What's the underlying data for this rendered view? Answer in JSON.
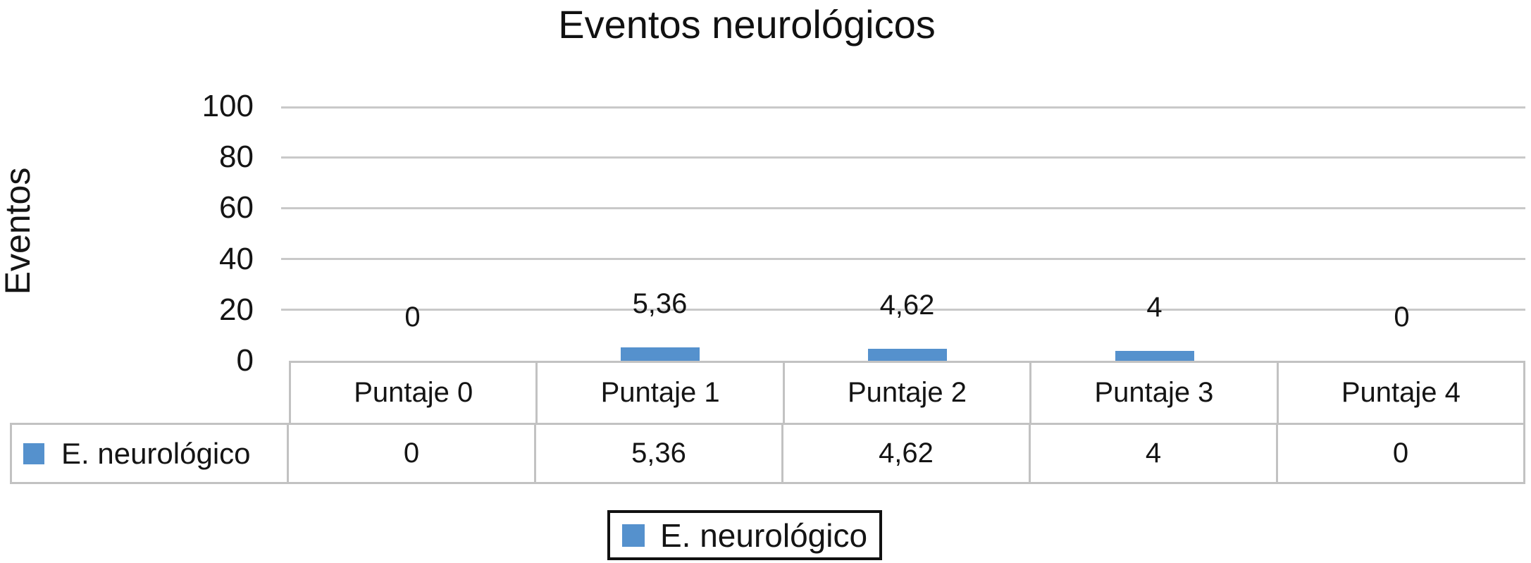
{
  "title": "Eventos neurológicos",
  "y_axis": {
    "label": "Eventos",
    "ticks": [
      100,
      80,
      60,
      40,
      20,
      0
    ],
    "max": 100
  },
  "table": {
    "row_header": "E. neurológico",
    "columns": [
      "Puntaje 0",
      "Puntaje 1",
      "Puntaje 2",
      "Puntaje 3",
      "Puntaje 4"
    ],
    "values": [
      "0",
      "5,36",
      "4,62",
      "4",
      "0"
    ]
  },
  "legend": {
    "label": "E. neurológico"
  },
  "colors": {
    "bar": "#5591cd",
    "gridline": "#c9c9c9",
    "table_border": "#c2c2c2",
    "legend_border": "#111111",
    "text": "#141414"
  },
  "chart_data": {
    "type": "bar",
    "title": "Eventos neurológicos",
    "categories": [
      "Puntaje 0",
      "Puntaje 1",
      "Puntaje 2",
      "Puntaje 3",
      "Puntaje 4"
    ],
    "series": [
      {
        "name": "E. neurológico",
        "values": [
          0,
          5.36,
          4.62,
          4,
          0
        ]
      }
    ],
    "value_labels": [
      "0",
      "5,36",
      "4,62",
      "4",
      "0"
    ],
    "xlabel": "",
    "ylabel": "Eventos",
    "ylim": [
      0,
      100
    ],
    "yticks": [
      0,
      20,
      40,
      60,
      80,
      100
    ],
    "grid": true,
    "legend_position": "bottom",
    "data_table_shown": true,
    "decimal_separator": ","
  }
}
